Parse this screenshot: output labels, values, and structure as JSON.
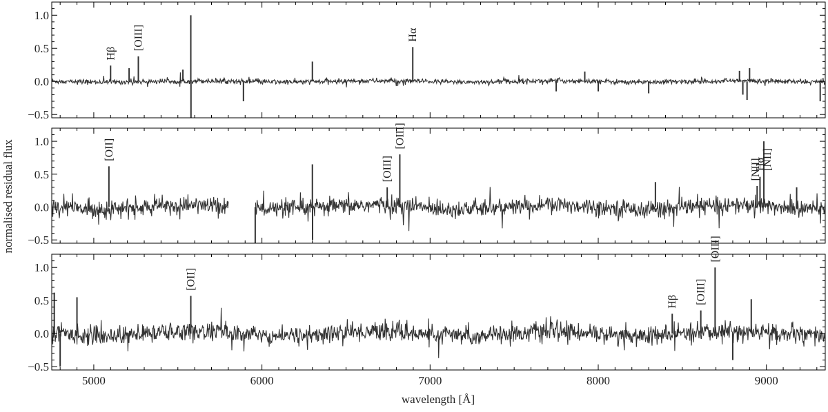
{
  "chart_data": {
    "type": "line",
    "xlabel": "wavelength [Å]",
    "ylabel": "normalised residual flux",
    "xlim": [
      4750,
      9350
    ],
    "ylim": [
      -0.55,
      1.2
    ],
    "x_ticks": [
      5000,
      6000,
      7000,
      8000,
      9000
    ],
    "x_tick_labels": [
      "5000",
      "6000",
      "7000",
      "8000",
      "9000"
    ],
    "y_ticks": [
      -0.5,
      0.0,
      0.5,
      1.0
    ],
    "y_tick_labels": [
      "−0.5",
      "0.0",
      "0.5",
      "1.0"
    ],
    "grid": false,
    "line_color": "#333333",
    "panels": [
      {
        "id": "panel-1",
        "noise_level": 0.035,
        "gaps": [],
        "features": [
          {
            "x": 5100,
            "y": 0.24
          },
          {
            "x": 5210,
            "y": 0.2
          },
          {
            "x": 5265,
            "y": 0.38
          },
          {
            "x": 5530,
            "y": 0.18
          },
          {
            "x": 5577,
            "y": 1.0
          },
          {
            "x": 5578,
            "y": -0.6
          },
          {
            "x": 5890,
            "y": -0.3
          },
          {
            "x": 6300,
            "y": 0.3
          },
          {
            "x": 6897,
            "y": 0.52
          },
          {
            "x": 7750,
            "y": -0.15
          },
          {
            "x": 7920,
            "y": 0.15
          },
          {
            "x": 8000,
            "y": -0.15
          },
          {
            "x": 8300,
            "y": -0.18
          },
          {
            "x": 8840,
            "y": 0.16
          },
          {
            "x": 8860,
            "y": -0.2
          },
          {
            "x": 8885,
            "y": -0.28
          },
          {
            "x": 8900,
            "y": 0.2
          },
          {
            "x": 9320,
            "y": -0.3
          }
        ],
        "annotations": [
          {
            "label": "Hβ",
            "x": 5100,
            "y": 0.32
          },
          {
            "label": "[OIII]",
            "x": 5265,
            "y": 0.46
          },
          {
            "label": "Hα",
            "x": 6897,
            "y": 0.6
          }
        ]
      },
      {
        "id": "panel-2",
        "noise_level": 0.12,
        "gaps": [
          [
            5800,
            5960
          ]
        ],
        "features": [
          {
            "x": 5090,
            "y": 0.62
          },
          {
            "x": 5960,
            "y": -0.55
          },
          {
            "x": 6300,
            "y": 0.65
          },
          {
            "x": 6301,
            "y": -0.5
          },
          {
            "x": 6745,
            "y": 0.3
          },
          {
            "x": 6820,
            "y": 0.8
          },
          {
            "x": 8340,
            "y": 0.38
          },
          {
            "x": 8945,
            "y": 0.32
          },
          {
            "x": 8962,
            "y": 0.46
          },
          {
            "x": 8985,
            "y": 1.0
          },
          {
            "x": 9180,
            "y": 0.3
          }
        ],
        "annotations": [
          {
            "label": "[OII]",
            "x": 5090,
            "y": 0.7
          },
          {
            "label": "[OIII]",
            "x": 6745,
            "y": 0.38
          },
          {
            "label": "[OIII]",
            "x": 6820,
            "y": 0.88
          },
          {
            "label": "[NII]",
            "x": 8935,
            "y": 0.4
          },
          {
            "label": "Hα",
            "x": 8962,
            "y": 0.55
          },
          {
            "label": "[NII]",
            "x": 9005,
            "y": 0.55
          }
        ]
      },
      {
        "id": "panel-3",
        "noise_level": 0.13,
        "gaps": [],
        "features": [
          {
            "x": 4765,
            "y": 0.62
          },
          {
            "x": 4800,
            "y": -0.5
          },
          {
            "x": 4900,
            "y": 0.55
          },
          {
            "x": 5577,
            "y": 0.57
          },
          {
            "x": 8440,
            "y": 0.3
          },
          {
            "x": 8610,
            "y": 0.35
          },
          {
            "x": 8695,
            "y": 1.0
          },
          {
            "x": 8800,
            "y": -0.4
          },
          {
            "x": 8910,
            "y": 0.52
          }
        ],
        "annotations": [
          {
            "label": "[OII]",
            "x": 5577,
            "y": 0.65
          },
          {
            "label": "Hβ",
            "x": 8440,
            "y": 0.38
          },
          {
            "label": "[OIII]",
            "x": 8610,
            "y": 0.43
          },
          {
            "label": "[OIII]",
            "x": 8695,
            "y": 1.08
          }
        ]
      }
    ]
  }
}
